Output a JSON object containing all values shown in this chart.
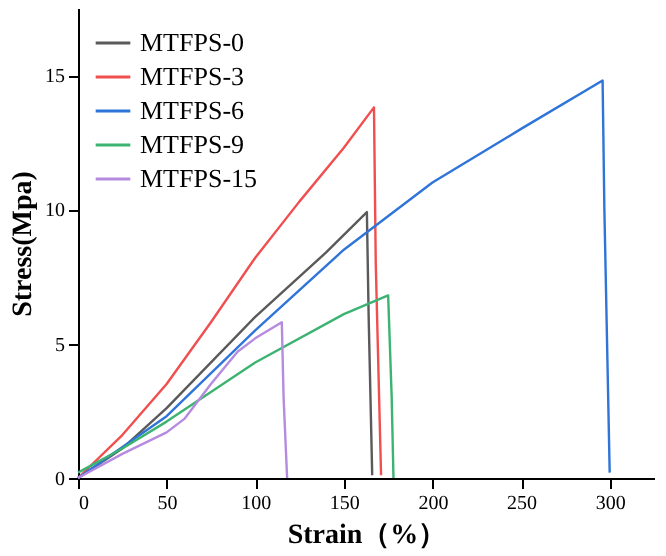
{
  "chart_data": {
    "type": "line",
    "xlabel": "Strain（%）",
    "ylabel": "Stress(Mpa)",
    "xlim": [
      0,
      325
    ],
    "ylim": [
      0,
      17.5
    ],
    "xticks": [
      0,
      50,
      100,
      150,
      200,
      250,
      300
    ],
    "yticks": [
      0,
      5,
      10,
      15
    ],
    "legend": "top left",
    "grid": false,
    "marker": "none",
    "line_style": "solid",
    "series": [
      {
        "name": "MTFPS-0",
        "color": "#5a5a5a",
        "x": [
          0,
          25,
          50,
          100,
          140,
          163,
          164,
          166
        ],
        "values": [
          0,
          1.1,
          2.6,
          6.0,
          8.4,
          9.9,
          6,
          0.1
        ]
      },
      {
        "name": "MTFPS-3",
        "color": "#f04f4f",
        "x": [
          0,
          25,
          50,
          75,
          100,
          125,
          150,
          167,
          168,
          171
        ],
        "values": [
          0,
          1.6,
          3.5,
          5.8,
          8.2,
          10.3,
          12.3,
          13.8,
          8,
          0.1
        ]
      },
      {
        "name": "MTFPS-6",
        "color": "#2f74d8",
        "x": [
          0,
          50,
          100,
          150,
          200,
          250,
          296,
          297,
          300
        ],
        "values": [
          0,
          2.3,
          5.5,
          8.5,
          11.0,
          13.0,
          14.8,
          10,
          0.2
        ]
      },
      {
        "name": "MTFPS-9",
        "color": "#3cb371",
        "x": [
          0,
          25,
          50,
          100,
          150,
          175,
          177,
          178
        ],
        "values": [
          0.2,
          1.1,
          2.1,
          4.3,
          6.1,
          6.8,
          3,
          0
        ]
      },
      {
        "name": "MTFPS-15",
        "color": "#b58be0",
        "x": [
          0,
          25,
          50,
          60,
          75,
          90,
          100,
          115,
          116,
          118
        ],
        "values": [
          0,
          0.9,
          1.7,
          2.2,
          3.5,
          4.7,
          5.2,
          5.8,
          3,
          0
        ]
      }
    ]
  }
}
